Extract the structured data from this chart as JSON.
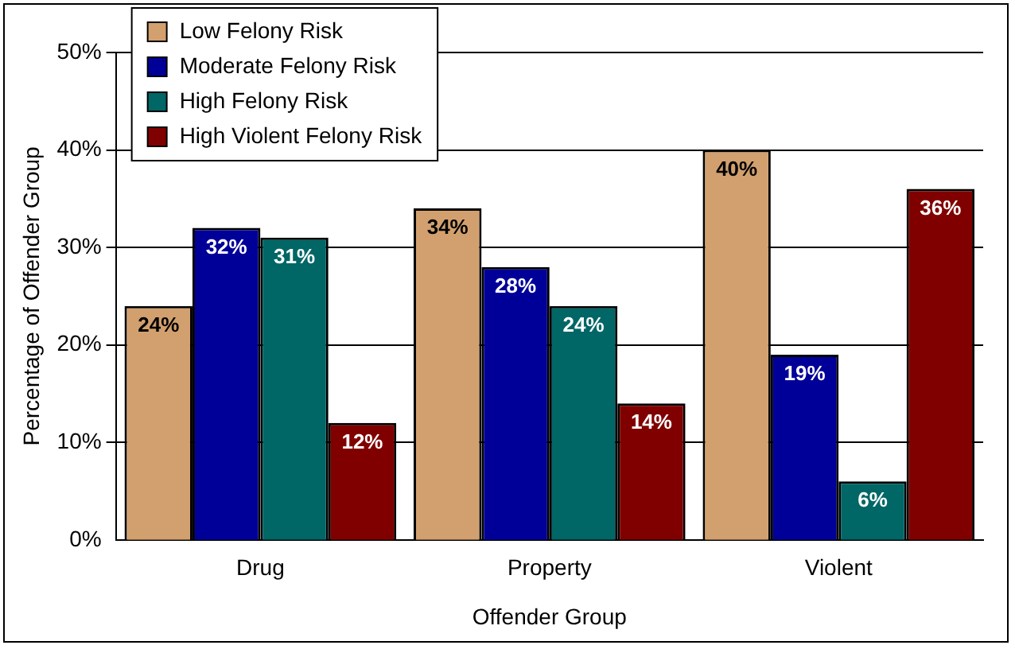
{
  "chart_data": {
    "type": "bar",
    "xlabel": "Offender Group",
    "ylabel": "Percentage of Offender Group",
    "categories": [
      "Drug",
      "Property",
      "Violent"
    ],
    "series": [
      {
        "name": "Low Felony Risk",
        "color": "#d2a06e",
        "values": [
          24,
          34,
          40
        ],
        "value_labels": [
          "24%",
          "34%",
          "40%"
        ]
      },
      {
        "name": "Moderate Felony Risk",
        "color": "#000099",
        "values": [
          32,
          28,
          19
        ],
        "value_labels": [
          "32%",
          "28%",
          "19%"
        ]
      },
      {
        "name": "High Felony Risk",
        "color": "#006666",
        "values": [
          31,
          24,
          6
        ],
        "value_labels": [
          "31%",
          "24%",
          "6%"
        ]
      },
      {
        "name": "High Violent Felony Risk",
        "color": "#800000",
        "values": [
          12,
          14,
          36
        ],
        "value_labels": [
          "12%",
          "14%",
          "36%"
        ]
      }
    ],
    "ylim": [
      0,
      50
    ],
    "yticks": [
      {
        "value": 0,
        "label": "0%"
      },
      {
        "value": 10,
        "label": "10%"
      },
      {
        "value": 20,
        "label": "20%"
      },
      {
        "value": 30,
        "label": "30%"
      },
      {
        "value": 40,
        "label": "40%"
      },
      {
        "value": 50,
        "label": "50%"
      }
    ],
    "grid": "y",
    "legend": "top left"
  }
}
